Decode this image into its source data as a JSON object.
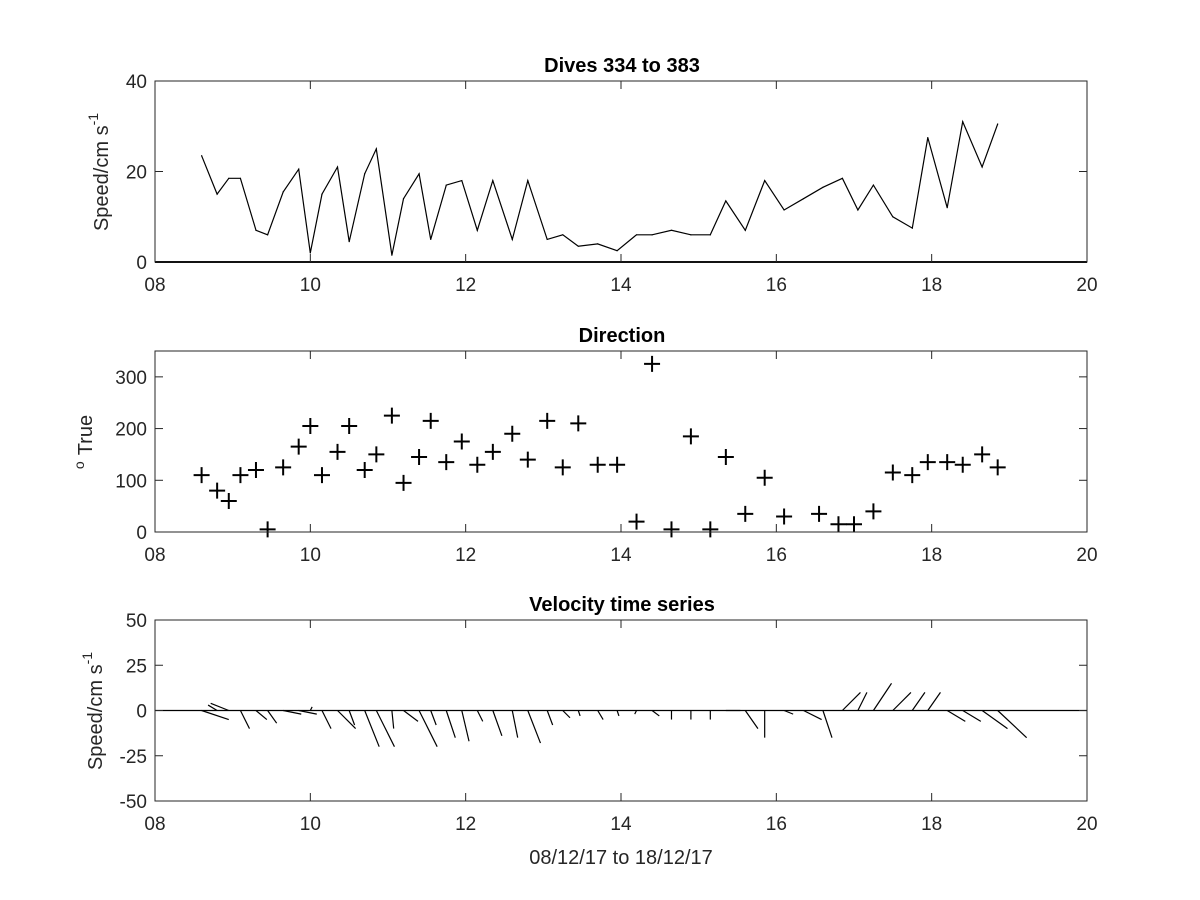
{
  "chart_data": [
    {
      "type": "line",
      "title": "Dives 334 to 383",
      "ylabel_main": "Speed/cm s",
      "ylabel_exp": "-1",
      "xlabel": "",
      "xlim": [
        8,
        20
      ],
      "ylim": [
        0,
        40
      ],
      "xtick_labels": [
        "08",
        "10",
        "12",
        "14",
        "16",
        "18",
        "20"
      ],
      "ytick_labels": [
        "0",
        "20",
        "40"
      ],
      "grid": false,
      "baseline": 0,
      "x": [
        8.6,
        8.8,
        8.95,
        9.1,
        9.3,
        9.45,
        9.65,
        9.85,
        10.0,
        10.15,
        10.35,
        10.5,
        10.7,
        10.85,
        11.05,
        11.2,
        11.4,
        11.55,
        11.75,
        11.95,
        12.15,
        12.35,
        12.6,
        12.8,
        13.05,
        13.25,
        13.45,
        13.7,
        13.95,
        14.2,
        14.4,
        14.65,
        14.9,
        15.15,
        15.35,
        15.6,
        15.85,
        16.1,
        16.35,
        16.6,
        16.85,
        17.05,
        17.25,
        17.5,
        17.75,
        17.95,
        18.2,
        18.4,
        18.65,
        18.85
      ],
      "y": [
        23.5,
        15,
        18.5,
        18.5,
        7,
        6,
        15.5,
        20.5,
        2,
        15,
        21,
        4.5,
        19.5,
        25,
        1.5,
        14,
        19.5,
        5,
        17,
        18,
        7,
        18,
        5,
        18,
        5,
        6,
        3.5,
        4,
        2.5,
        6,
        6,
        7,
        6,
        6,
        13.5,
        7,
        18,
        11.5,
        14,
        16.5,
        18.5,
        11.5,
        17,
        10,
        7.5,
        27.5,
        12,
        31,
        21,
        30.5
      ]
    },
    {
      "type": "scatter",
      "title": "Direction",
      "ylabel_main": "True",
      "ylabel_prefix": "o",
      "xlabel": "",
      "marker": "+",
      "xlim": [
        8,
        20
      ],
      "ylim": [
        0,
        350
      ],
      "xtick_labels": [
        "08",
        "10",
        "12",
        "14",
        "16",
        "18",
        "20"
      ],
      "ytick_labels": [
        "0",
        "100",
        "200",
        "300"
      ],
      "grid": false,
      "x": [
        8.6,
        8.8,
        8.95,
        9.1,
        9.3,
        9.45,
        9.65,
        9.85,
        10.0,
        10.15,
        10.35,
        10.5,
        10.7,
        10.85,
        11.05,
        11.2,
        11.4,
        11.55,
        11.75,
        11.95,
        12.15,
        12.35,
        12.6,
        12.8,
        13.05,
        13.25,
        13.45,
        13.7,
        13.95,
        14.2,
        14.4,
        14.65,
        14.9,
        15.15,
        15.35,
        15.6,
        15.85,
        16.1,
        16.55,
        16.8,
        17.0,
        17.25,
        17.5,
        17.75,
        17.95,
        18.2,
        18.4,
        18.65,
        18.85
      ],
      "y": [
        110,
        80,
        60,
        110,
        120,
        5,
        125,
        165,
        205,
        110,
        155,
        205,
        120,
        150,
        225,
        95,
        145,
        215,
        135,
        175,
        130,
        155,
        190,
        140,
        215,
        125,
        210,
        130,
        130,
        20,
        325,
        5,
        185,
        5,
        145,
        35,
        105,
        30,
        35,
        15,
        15,
        40,
        115,
        110,
        135,
        135,
        130,
        150,
        125
      ]
    },
    {
      "type": "quiver",
      "title": "Velocity time series",
      "ylabel_main": "Speed/cm s",
      "ylabel_exp": "-1",
      "xlabel": "08/12/17 to 18/12/17",
      "xlim": [
        8,
        20
      ],
      "ylim": [
        -50,
        50
      ],
      "xtick_labels": [
        "08",
        "10",
        "12",
        "14",
        "16",
        "18",
        "20"
      ],
      "ytick_labels": [
        "-50",
        "-25",
        "0",
        "25",
        "50"
      ],
      "grid": false,
      "baseline": 0,
      "x": [
        8.6,
        8.8,
        8.95,
        9.1,
        9.3,
        9.45,
        9.65,
        9.85,
        10.0,
        10.15,
        10.35,
        10.5,
        10.7,
        10.85,
        11.05,
        11.2,
        11.4,
        11.55,
        11.75,
        11.95,
        12.15,
        12.35,
        12.6,
        12.8,
        13.05,
        13.25,
        13.45,
        13.7,
        13.95,
        14.2,
        14.4,
        14.65,
        14.9,
        15.15,
        15.35,
        15.6,
        15.85,
        16.1,
        16.35,
        16.6,
        16.85,
        17.05,
        17.25,
        17.5,
        17.75,
        17.95,
        18.2,
        18.4,
        18.65,
        18.85
      ],
      "u": [
        15,
        -5,
        -10,
        5,
        6,
        5,
        10,
        10,
        1,
        5,
        10,
        3,
        8,
        10,
        1,
        8,
        10,
        3,
        5,
        4,
        3,
        5,
        3,
        7,
        3,
        4,
        1,
        3,
        1,
        -1,
        4,
        0,
        0,
        0,
        8,
        7,
        0,
        5,
        10,
        5,
        10,
        5,
        10,
        10,
        7,
        7,
        10,
        10,
        14,
        16
      ],
      "v": [
        -5,
        3,
        4,
        -10,
        -5,
        -7,
        -2,
        -2,
        2,
        -10,
        -10,
        -8,
        -20,
        -20,
        -10,
        -6,
        -20,
        -8,
        -15,
        -17,
        -6,
        -14,
        -15,
        -18,
        -8,
        -4,
        -3,
        -5,
        -3,
        -2,
        -3,
        -5,
        -5,
        -5,
        0,
        -10,
        -15,
        -2,
        -5,
        -15,
        10,
        10,
        15,
        10,
        10,
        10,
        -6,
        -6,
        -10,
        -15
      ]
    }
  ]
}
